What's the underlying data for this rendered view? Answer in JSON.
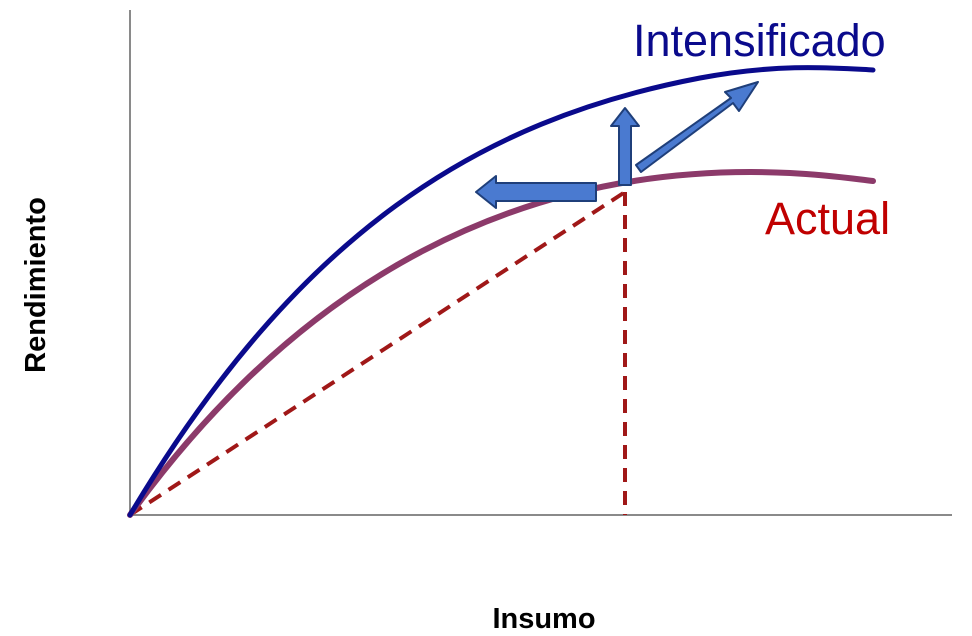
{
  "figure": {
    "x_axis_title": "Insumo",
    "y_axis_title": "Rendimiento",
    "curves": [
      {
        "label": "Intensificado",
        "color": "#0a0a8c"
      },
      {
        "label": "Actual",
        "color": "#8c3a6a",
        "label_color": "#c00000"
      }
    ],
    "arrow_fill": "#4a7ad0",
    "arrow_stroke": "#1f3f7a",
    "reference_line_color": "#a01818",
    "axis_color": "#8a8a8a"
  }
}
